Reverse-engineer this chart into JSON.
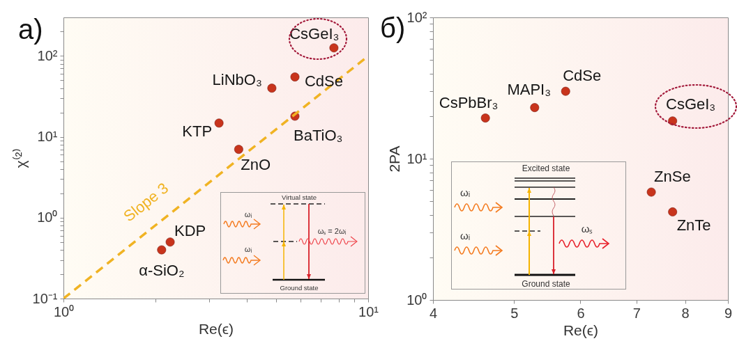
{
  "chart_data": [
    {
      "type": "scatter",
      "title": "a)",
      "xlabel": "Re(ϵ)",
      "ylabel": "χ⁽²⁾",
      "log": "xy",
      "xlim": [
        1,
        10
      ],
      "ylim": [
        0.1,
        300
      ],
      "xticks": [
        {
          "value": 1,
          "label": "10⁰"
        },
        {
          "value": 2,
          "label": null
        },
        {
          "value": 3,
          "label": null
        },
        {
          "value": 4,
          "label": null
        },
        {
          "value": 5,
          "label": null
        },
        {
          "value": 6,
          "label": null
        },
        {
          "value": 7,
          "label": null
        },
        {
          "value": 8,
          "label": null
        },
        {
          "value": 9,
          "label": null
        },
        {
          "value": 10,
          "label": "10¹"
        }
      ],
      "yticks": [
        {
          "value": 0.1,
          "label": "10⁻¹"
        },
        {
          "value": 0.2,
          "label": null
        },
        {
          "value": 0.3,
          "label": null
        },
        {
          "value": 0.4,
          "label": null
        },
        {
          "value": 0.5,
          "label": null
        },
        {
          "value": 0.6,
          "label": null
        },
        {
          "value": 0.7,
          "label": null
        },
        {
          "value": 0.8,
          "label": null
        },
        {
          "value": 0.9,
          "label": null
        },
        {
          "value": 1,
          "label": "10⁰"
        },
        {
          "value": 2,
          "label": null
        },
        {
          "value": 3,
          "label": null
        },
        {
          "value": 4,
          "label": null
        },
        {
          "value": 5,
          "label": null
        },
        {
          "value": 6,
          "label": null
        },
        {
          "value": 7,
          "label": null
        },
        {
          "value": 8,
          "label": null
        },
        {
          "value": 9,
          "label": null
        },
        {
          "value": 10,
          "label": "10¹"
        },
        {
          "value": 20,
          "label": null
        },
        {
          "value": 30,
          "label": null
        },
        {
          "value": 40,
          "label": null
        },
        {
          "value": 50,
          "label": null
        },
        {
          "value": 60,
          "label": null
        },
        {
          "value": 70,
          "label": null
        },
        {
          "value": 80,
          "label": null
        },
        {
          "value": 90,
          "label": null
        },
        {
          "value": 100,
          "label": "10²"
        },
        {
          "value": 200,
          "label": null
        }
      ],
      "series": [
        {
          "type": "scatter",
          "marker": "circle",
          "color": "#c8341c",
          "x": [
            2.1,
            2.24,
            3.24,
            3.76,
            4.83,
            5.75,
            5.75,
            7.72
          ],
          "values": [
            0.4,
            0.5,
            14.8,
            7,
            40,
            55,
            18,
            126
          ]
        },
        {
          "type": "line",
          "name": "Slope 3",
          "color": "#f0b323",
          "line_style": "dashed",
          "x": [
            1,
            10
          ],
          "values": [
            0.1,
            100
          ]
        }
      ],
      "annotations": [
        {
          "text": "α-SiO₂",
          "x": 2.1,
          "y": 0.4
        },
        {
          "text": "KDP",
          "x": 2.24,
          "y": 0.5
        },
        {
          "text": "KTP",
          "x": 3.24,
          "y": 14.8
        },
        {
          "text": "ZnO",
          "x": 3.76,
          "y": 7
        },
        {
          "text": "LiNbO₃",
          "x": 4.83,
          "y": 40
        },
        {
          "text": "CdSe",
          "x": 5.75,
          "y": 55
        },
        {
          "text": "BaTiO₃",
          "x": 5.75,
          "y": 18
        },
        {
          "text": "CsGeI₃",
          "x": 7.72,
          "y": 126
        },
        "Virtual state",
        "ωᵢ",
        "ωᵢ",
        "ωₛ = 2ωᵢ",
        "Ground state"
      ]
    },
    {
      "type": "scatter",
      "title": "б)",
      "xlabel": "Re(ϵ)",
      "ylabel": "2PA",
      "log": "xy",
      "xlim": [
        4,
        9
      ],
      "ylim": [
        1,
        100
      ],
      "xticks": [
        4,
        5,
        6,
        7,
        8,
        9
      ],
      "yticks": [
        {
          "value": 1,
          "label": "10⁰"
        },
        {
          "value": 2,
          "label": null
        },
        {
          "value": 3,
          "label": null
        },
        {
          "value": 4,
          "label": null
        },
        {
          "value": 5,
          "label": null
        },
        {
          "value": 6,
          "label": null
        },
        {
          "value": 7,
          "label": null
        },
        {
          "value": 8,
          "label": null
        },
        {
          "value": 9,
          "label": null
        },
        {
          "value": 10,
          "label": "10¹"
        },
        {
          "value": 20,
          "label": null
        },
        {
          "value": 30,
          "label": null
        },
        {
          "value": 40,
          "label": null
        },
        {
          "value": 50,
          "label": null
        },
        {
          "value": 60,
          "label": null
        },
        {
          "value": 70,
          "label": null
        },
        {
          "value": 80,
          "label": null
        },
        {
          "value": 90,
          "label": null
        },
        {
          "value": 100,
          "label": "10²"
        }
      ],
      "series": [
        {
          "type": "scatter",
          "marker": "circle",
          "color": "#c8341c",
          "x": [
            4.62,
            5.29,
            5.76,
            7.73,
            7.29,
            7.73
          ],
          "values": [
            19.4,
            23,
            30,
            18.5,
            5.8,
            4.2
          ]
        }
      ],
      "annotations": [
        {
          "text": "CsPbBr₃",
          "x": 4.62,
          "y": 19.4
        },
        {
          "text": "MAPI₃",
          "x": 5.29,
          "y": 23
        },
        {
          "text": "CdSe",
          "x": 5.76,
          "y": 30
        },
        {
          "text": "CsGeI₃",
          "x": 7.73,
          "y": 18.5
        },
        {
          "text": "ZnSe",
          "x": 7.29,
          "y": 5.8
        },
        {
          "text": "ZnTe",
          "x": 7.73,
          "y": 4.2
        },
        "Excited state",
        "ωᵢ",
        "ωᵢ",
        "ωₛ",
        "Ground state"
      ]
    }
  ]
}
